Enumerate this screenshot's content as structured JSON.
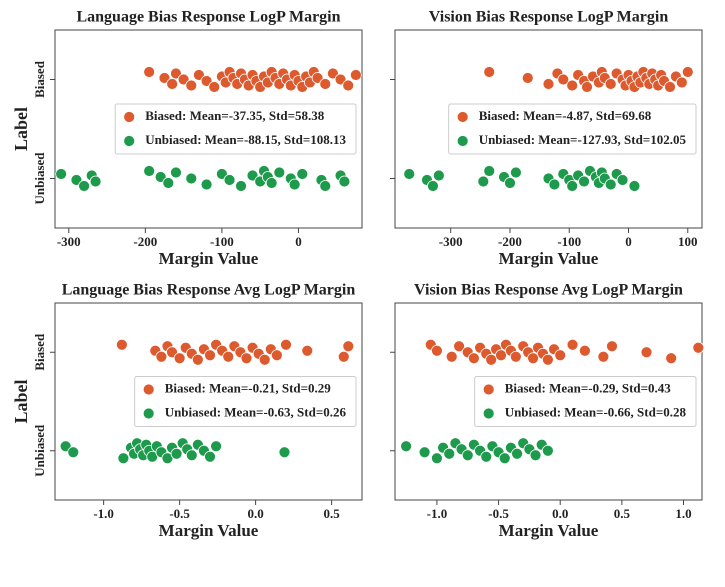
{
  "chart_data": [
    {
      "type": "strip",
      "title": "Language Bias Response LogP Margin",
      "xlabel": "Margin Value",
      "ylabel": "Label",
      "categories": [
        "Biased",
        "Unbiased"
      ],
      "xlim": [
        -318,
        83
      ],
      "xticks": [
        -300,
        -200,
        -100,
        0
      ],
      "legend": "center right",
      "series": [
        {
          "name": "Biased: Mean=-37.35, Std=58.38",
          "color": "#dd5a2e",
          "values": [
            -195,
            -175,
            -165,
            -160,
            -150,
            -140,
            -130,
            -120,
            -110,
            -100,
            -95,
            -90,
            -85,
            -80,
            -75,
            -70,
            -65,
            -60,
            -55,
            -50,
            -45,
            -40,
            -35,
            -30,
            -25,
            -20,
            -15,
            -10,
            -5,
            0,
            5,
            10,
            15,
            20,
            25,
            35,
            45,
            55,
            65,
            75
          ]
        },
        {
          "name": "Unbiased: Mean=-88.15, Std=108.13",
          "color": "#1e9a4c",
          "values": [
            -310,
            -290,
            -280,
            -270,
            -265,
            -195,
            -180,
            -170,
            -160,
            -140,
            -120,
            -100,
            -90,
            -75,
            -60,
            -50,
            -45,
            -40,
            -35,
            -25,
            -10,
            -5,
            5,
            30,
            35,
            55,
            60
          ]
        }
      ]
    },
    {
      "type": "strip",
      "title": "Vision Bias Response LogP Margin",
      "xlabel": "Margin Value",
      "categories": [
        null,
        null
      ],
      "xlim": [
        -394,
        124
      ],
      "xticks": [
        -300,
        -200,
        -100,
        0,
        100
      ],
      "legend": "center right",
      "series": [
        {
          "name": "Biased: Mean=-4.87, Std=69.68",
          "color": "#dd5a2e",
          "values": [
            -235,
            -170,
            -135,
            -120,
            -110,
            -95,
            -85,
            -75,
            -70,
            -60,
            -50,
            -45,
            -40,
            -30,
            -20,
            -10,
            -5,
            0,
            5,
            10,
            15,
            20,
            25,
            30,
            35,
            40,
            45,
            50,
            55,
            60,
            70,
            80,
            90,
            100
          ]
        },
        {
          "name": "Unbiased: Mean=-127.93, Std=102.05",
          "color": "#1e9a4c",
          "values": [
            -370,
            -340,
            -330,
            -320,
            -245,
            -235,
            -210,
            -200,
            -190,
            -135,
            -125,
            -110,
            -100,
            -95,
            -85,
            -75,
            -65,
            -55,
            -50,
            -45,
            -40,
            -30,
            -20,
            -10,
            10
          ]
        }
      ]
    },
    {
      "type": "strip",
      "title": "Language Bias Response Avg LogP Margin",
      "xlabel": "Margin Value",
      "ylabel": "Label",
      "categories": [
        "Biased",
        "Unbiased"
      ],
      "xlim": [
        -1.32,
        0.7
      ],
      "xticks": [
        {
          "value": -1,
          "label": "-1.0"
        },
        -0.5,
        {
          "value": 0,
          "label": "0.0"
        },
        0.5
      ],
      "legend": "center right",
      "series": [
        {
          "name": "Biased: Mean=-0.21, Std=0.29",
          "color": "#dd5a2e",
          "values": [
            -0.88,
            -0.66,
            -0.62,
            -0.58,
            -0.55,
            -0.5,
            -0.46,
            -0.42,
            -0.38,
            -0.34,
            -0.3,
            -0.26,
            -0.22,
            -0.18,
            -0.14,
            -0.1,
            -0.06,
            -0.02,
            0.02,
            0.06,
            0.1,
            0.14,
            0.2,
            0.34,
            0.58,
            0.61
          ]
        },
        {
          "name": "Unbiased: Mean=-0.63, Std=0.26",
          "color": "#1e9a4c",
          "values": [
            -1.25,
            -1.2,
            -0.87,
            -0.82,
            -0.8,
            -0.78,
            -0.76,
            -0.74,
            -0.72,
            -0.7,
            -0.68,
            -0.65,
            -0.62,
            -0.58,
            -0.55,
            -0.52,
            -0.48,
            -0.45,
            -0.42,
            -0.38,
            -0.34,
            -0.3,
            -0.26,
            0.19
          ]
        }
      ]
    },
    {
      "type": "strip",
      "title": "Vision Bias Response Avg LogP Margin",
      "xlabel": "Margin Value",
      "categories": [
        null,
        null
      ],
      "xlim": [
        -1.34,
        1.15
      ],
      "xticks": [
        {
          "value": -1,
          "label": "-1.0"
        },
        -0.5,
        {
          "value": 0,
          "label": "0.0"
        },
        0.5,
        {
          "value": 1,
          "label": "1.0"
        }
      ],
      "legend": "center right",
      "series": [
        {
          "name": "Biased: Mean=-0.29, Std=0.43",
          "color": "#dd5a2e",
          "values": [
            -1.05,
            -1.0,
            -0.88,
            -0.82,
            -0.75,
            -0.7,
            -0.65,
            -0.6,
            -0.56,
            -0.52,
            -0.48,
            -0.44,
            -0.4,
            -0.36,
            -0.3,
            -0.26,
            -0.22,
            -0.18,
            -0.14,
            -0.1,
            -0.05,
            0.0,
            0.1,
            0.2,
            0.35,
            0.42,
            0.7,
            0.9,
            1.12
          ]
        },
        {
          "name": "Unbiased: Mean=-0.66, Std=0.28",
          "color": "#1e9a4c",
          "values": [
            -1.25,
            -1.1,
            -1.0,
            -0.95,
            -0.9,
            -0.85,
            -0.8,
            -0.75,
            -0.7,
            -0.65,
            -0.6,
            -0.55,
            -0.5,
            -0.45,
            -0.4,
            -0.35,
            -0.3,
            -0.25,
            -0.2,
            -0.15,
            -0.1
          ]
        }
      ]
    }
  ]
}
